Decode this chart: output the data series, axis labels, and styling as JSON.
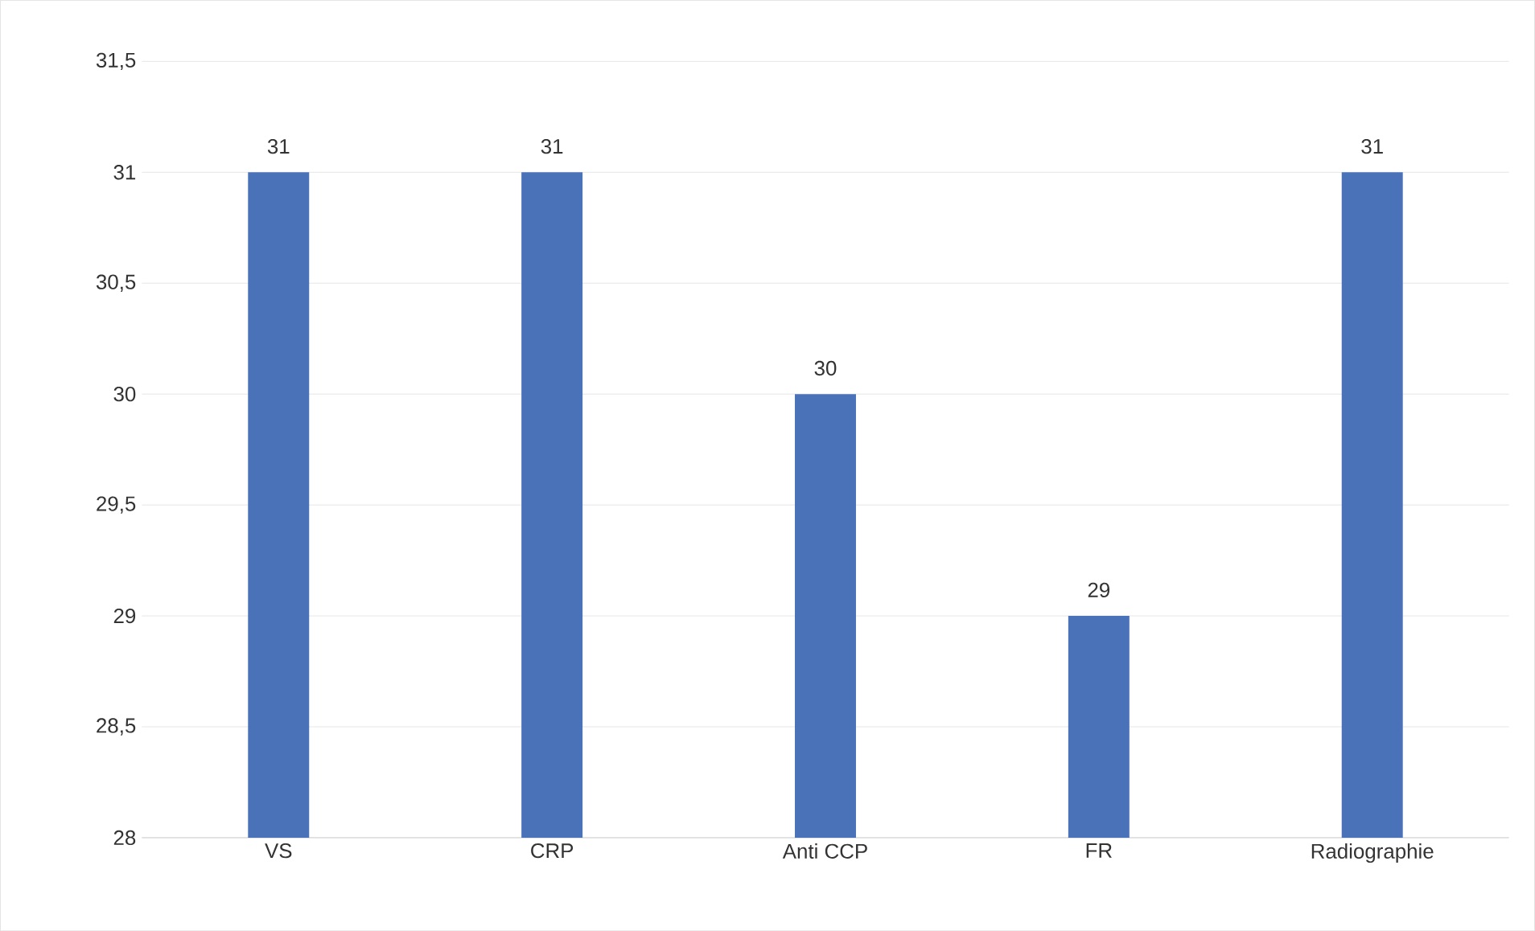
{
  "chart_data": {
    "type": "bar",
    "categories": [
      "VS",
      "CRP",
      "Anti CCP",
      "FR",
      "Radiographie"
    ],
    "values": [
      31,
      31,
      30,
      29,
      31
    ],
    "color": "#4a72b8",
    "ylim": [
      28,
      31.5
    ],
    "yticks": [
      28,
      {
        "value": 28.5,
        "label": "28,5"
      },
      29,
      {
        "value": 29.5,
        "label": "29,5"
      },
      30,
      {
        "value": 30.5,
        "label": "30,5"
      },
      31,
      {
        "value": 31.5,
        "label": "31,5"
      }
    ],
    "grid": "y",
    "data_labels": true
  }
}
